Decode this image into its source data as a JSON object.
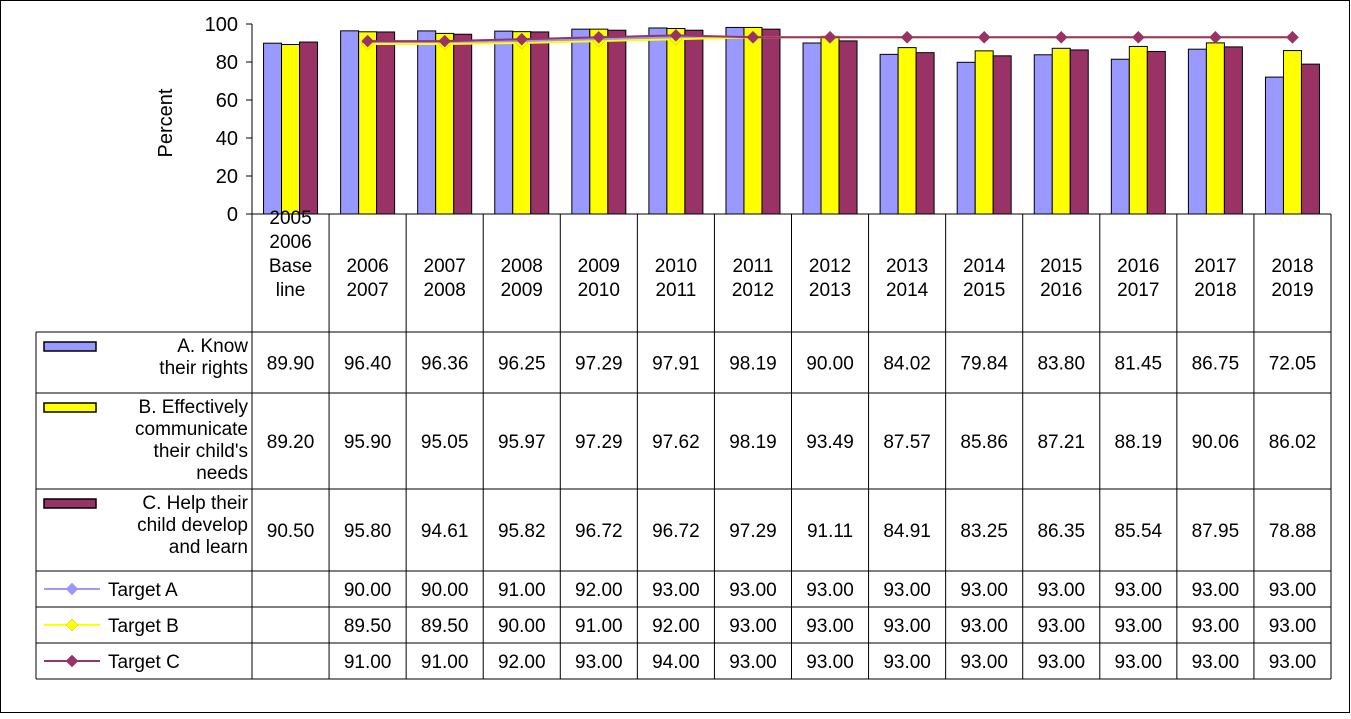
{
  "chart_data": {
    "type": "bar",
    "ylabel": "Percent",
    "ylim": [
      0,
      100
    ],
    "yticks": [
      "0",
      "20",
      "40",
      "60",
      "80",
      "100"
    ],
    "categories": [
      [
        "2005",
        "2006",
        "Base",
        "line"
      ],
      [
        "2006",
        "2007"
      ],
      [
        "2007",
        "2008"
      ],
      [
        "2008",
        "2009"
      ],
      [
        "2009",
        "2010"
      ],
      [
        "2010",
        "2011"
      ],
      [
        "2011",
        "2012"
      ],
      [
        "2012",
        "2013"
      ],
      [
        "2013",
        "2014"
      ],
      [
        "2014",
        "2015"
      ],
      [
        "2015",
        "2016"
      ],
      [
        "2016",
        "2017"
      ],
      [
        "2017",
        "2018"
      ],
      [
        "2018",
        "2019"
      ]
    ],
    "bar_series": [
      {
        "name": "A. Know their rights",
        "name_lines": [
          "A. Know",
          "their rights"
        ],
        "color": "#9999ff",
        "values": [
          89.9,
          96.4,
          96.36,
          96.25,
          97.29,
          97.91,
          98.19,
          90.0,
          84.02,
          79.84,
          83.8,
          81.45,
          86.75,
          72.05
        ],
        "labels": [
          "89.90",
          "96.40",
          "96.36",
          "96.25",
          "97.29",
          "97.91",
          "98.19",
          "90.00",
          "84.02",
          "79.84",
          "83.80",
          "81.45",
          "86.75",
          "72.05"
        ]
      },
      {
        "name": "B. Effectively communicate their child's needs",
        "name_lines": [
          "B. Effectively",
          "communicate",
          "their child's",
          "needs"
        ],
        "color": "#ffff00",
        "values": [
          89.2,
          95.9,
          95.05,
          95.97,
          97.29,
          97.62,
          98.19,
          93.49,
          87.57,
          85.86,
          87.21,
          88.19,
          90.06,
          86.02
        ],
        "labels": [
          "89.20",
          "95.90",
          "95.05",
          "95.97",
          "97.29",
          "97.62",
          "98.19",
          "93.49",
          "87.57",
          "85.86",
          "87.21",
          "88.19",
          "90.06",
          "86.02"
        ]
      },
      {
        "name": "C. Help their child develop and learn",
        "name_lines": [
          "C. Help their",
          "child develop",
          "and learn"
        ],
        "color": "#993366",
        "values": [
          90.5,
          95.8,
          94.61,
          95.82,
          96.72,
          96.72,
          97.29,
          91.11,
          84.91,
          83.25,
          86.35,
          85.54,
          87.95,
          78.88
        ],
        "labels": [
          "90.50",
          "95.80",
          "94.61",
          "95.82",
          "96.72",
          "96.72",
          "97.29",
          "91.11",
          "84.91",
          "83.25",
          "86.35",
          "85.54",
          "87.95",
          "78.88"
        ]
      }
    ],
    "line_series": [
      {
        "name": "Target A",
        "color": "#9999ff",
        "values": [
          null,
          90.0,
          90.0,
          91.0,
          92.0,
          93.0,
          93.0,
          93.0,
          93.0,
          93.0,
          93.0,
          93.0,
          93.0,
          93.0
        ],
        "labels": [
          "",
          "90.00",
          "90.00",
          "91.00",
          "92.00",
          "93.00",
          "93.00",
          "93.00",
          "93.00",
          "93.00",
          "93.00",
          "93.00",
          "93.00",
          "93.00"
        ]
      },
      {
        "name": "Target B",
        "color": "#ffff00",
        "values": [
          null,
          89.5,
          89.5,
          90.0,
          91.0,
          92.0,
          93.0,
          93.0,
          93.0,
          93.0,
          93.0,
          93.0,
          93.0,
          93.0
        ],
        "labels": [
          "",
          "89.50",
          "89.50",
          "90.00",
          "91.00",
          "92.00",
          "93.00",
          "93.00",
          "93.00",
          "93.00",
          "93.00",
          "93.00",
          "93.00",
          "93.00"
        ]
      },
      {
        "name": "Target C",
        "color": "#993366",
        "values": [
          null,
          91.0,
          91.0,
          92.0,
          93.0,
          94.0,
          93.0,
          93.0,
          93.0,
          93.0,
          93.0,
          93.0,
          93.0,
          93.0
        ],
        "labels": [
          "",
          "91.00",
          "91.00",
          "92.00",
          "93.00",
          "94.00",
          "93.00",
          "93.00",
          "93.00",
          "93.00",
          "93.00",
          "93.00",
          "93.00",
          "93.00"
        ]
      }
    ],
    "legend": "data-table",
    "grid": false
  }
}
